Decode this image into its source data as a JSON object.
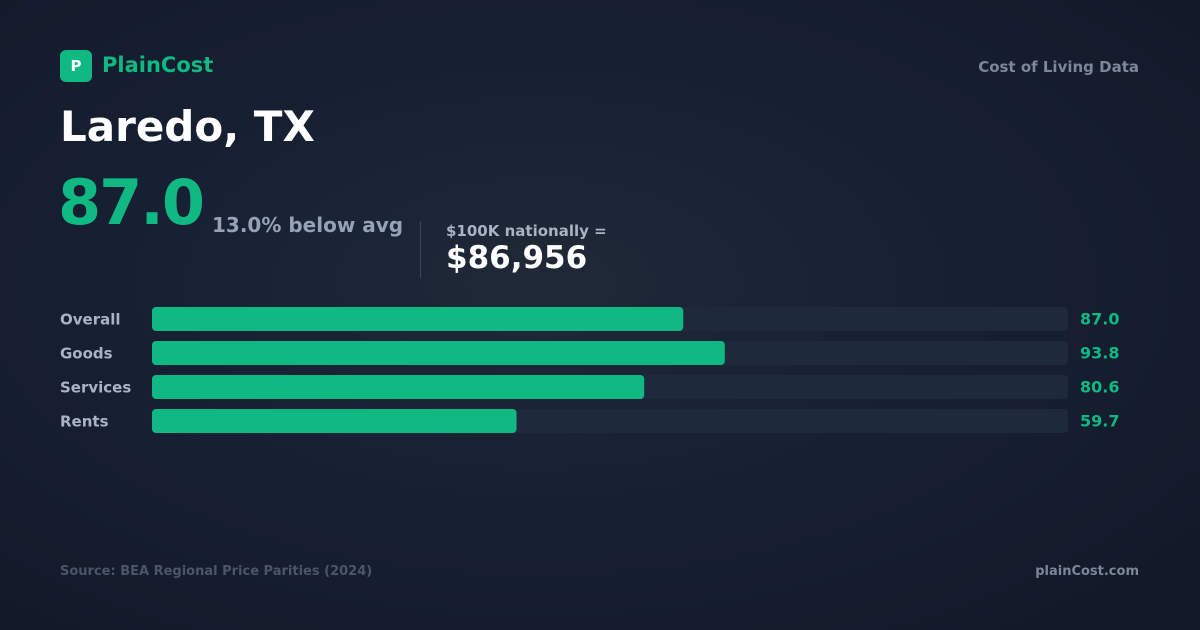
{
  "header": {
    "logo_letter": "P",
    "brand": "PlainCost",
    "tagline": "Cost of Living Data"
  },
  "summary": {
    "city": "Laredo, TX",
    "index": "87.0",
    "difference": "13.0% below avg",
    "equivalent_label": "$100K nationally =",
    "equivalent_value": "$86,956"
  },
  "chart_data": {
    "type": "bar",
    "orientation": "horizontal",
    "categories": [
      "Overall",
      "Goods",
      "Services",
      "Rents"
    ],
    "values": [
      87,
      93.8,
      80.6,
      59.7
    ],
    "value_labels": [
      "87.0",
      "93.8",
      "80.6",
      "59.7"
    ],
    "color": "#10b981",
    "xlim": [
      0,
      150
    ]
  },
  "footer": {
    "source": "Source: BEA Regional Price Parities (2024)",
    "site": "plainCost.com"
  }
}
